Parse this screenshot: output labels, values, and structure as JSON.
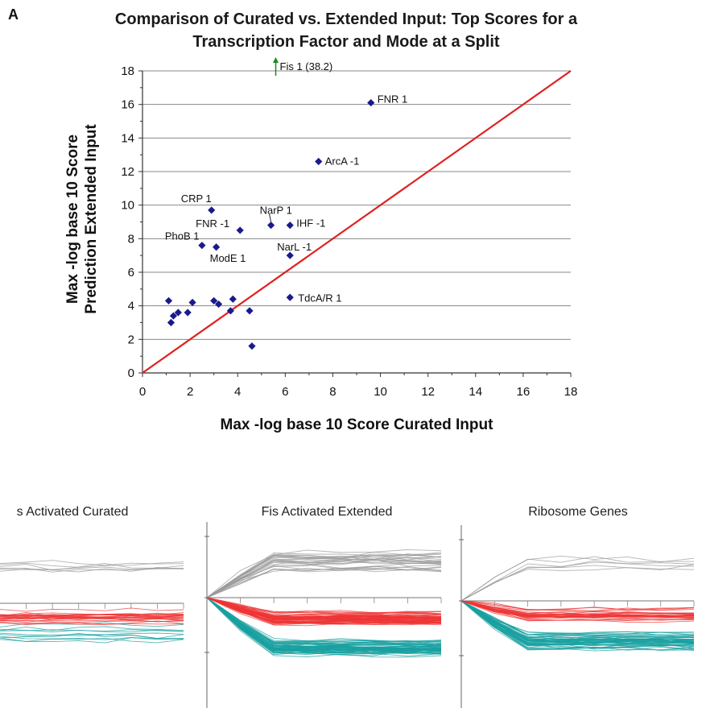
{
  "panel_label": "A",
  "chart_data": [
    {
      "type": "scatter",
      "title": [
        "Comparison of Curated vs. Extended Input: Top Scores for a",
        "Transcription Factor and Mode at a Split"
      ],
      "xlabel": "Max -log base 10 Score Curated Input",
      "ylabel": [
        "Max -log base 10 Score",
        "Prediction Extended Input"
      ],
      "xlim": [
        0,
        18
      ],
      "ylim": [
        0,
        18
      ],
      "xticks": [
        "0",
        "2",
        "4",
        "6",
        "8",
        "10",
        "12",
        "14",
        "16",
        "18"
      ],
      "yticks": [
        "0",
        "2",
        "4",
        "6",
        "8",
        "10",
        "12",
        "14",
        "16",
        "18"
      ],
      "grid": "horizontal",
      "legend": "none",
      "colors": {
        "points": "#1a1a8c",
        "diagonal": "#e02020",
        "arrow": "#1a8a1a",
        "grid": "#888888"
      },
      "diagonal": {
        "from": [
          0,
          0
        ],
        "to": [
          18,
          18
        ]
      },
      "offscale_point": {
        "label": "Fis 1",
        "value_text": "(38.2)",
        "x": 5.6,
        "y": 38.2
      },
      "points": [
        {
          "label": "FNR 1",
          "x": 9.6,
          "y": 16.1
        },
        {
          "label": "ArcA -1",
          "x": 7.4,
          "y": 12.6
        },
        {
          "label": "CRP 1",
          "x": 2.9,
          "y": 9.7
        },
        {
          "label": "NarP 1",
          "x": 5.4,
          "y": 8.8
        },
        {
          "label": "FNR -1",
          "x": 4.1,
          "y": 8.5
        },
        {
          "label": "IHF -1",
          "x": 6.2,
          "y": 8.8
        },
        {
          "label": "PhoB 1",
          "x": 2.5,
          "y": 7.6
        },
        {
          "label": "ModE 1",
          "x": 3.1,
          "y": 7.5
        },
        {
          "label": "NarL -1",
          "x": 6.2,
          "y": 7.0
        },
        {
          "label": "TdcA/R 1",
          "x": 6.2,
          "y": 4.5
        },
        {
          "label": "",
          "x": 1.1,
          "y": 4.3
        },
        {
          "label": "",
          "x": 1.3,
          "y": 3.4
        },
        {
          "label": "",
          "x": 1.2,
          "y": 3.0
        },
        {
          "label": "",
          "x": 1.5,
          "y": 3.6
        },
        {
          "label": "",
          "x": 1.9,
          "y": 3.6
        },
        {
          "label": "",
          "x": 2.1,
          "y": 4.2
        },
        {
          "label": "",
          "x": 3.0,
          "y": 4.3
        },
        {
          "label": "",
          "x": 3.2,
          "y": 4.1
        },
        {
          "label": "",
          "x": 3.7,
          "y": 3.7
        },
        {
          "label": "",
          "x": 3.8,
          "y": 4.4
        },
        {
          "label": "",
          "x": 4.5,
          "y": 3.7
        },
        {
          "label": "",
          "x": 4.6,
          "y": 1.6
        }
      ]
    },
    {
      "type": "line",
      "title": "s Activated Curated",
      "n_pink": 22,
      "n_teal": 10,
      "n_gray": 6
    },
    {
      "type": "line",
      "title": "Fis Activated Extended",
      "n_pink": 60,
      "n_teal": 60,
      "n_gray": 25
    },
    {
      "type": "line",
      "title": "Ribosome Genes",
      "n_pink": 30,
      "n_teal": 50,
      "n_gray": 6
    }
  ]
}
